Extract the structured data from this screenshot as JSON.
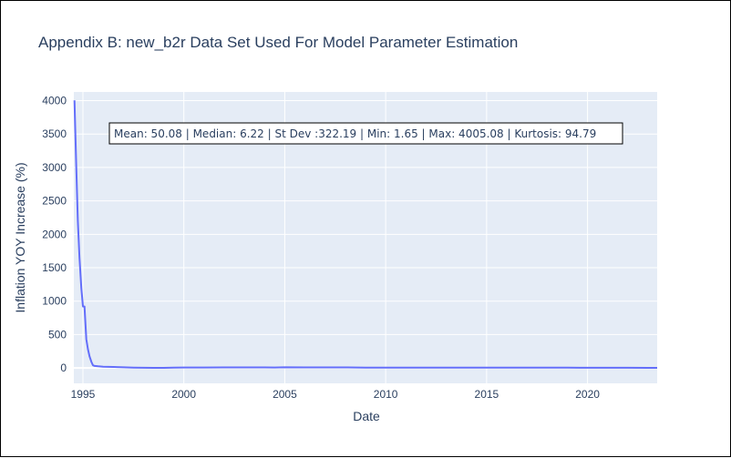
{
  "chart_data": {
    "type": "line",
    "title": "Appendix B: new_b2r Data Set Used For Model Parameter Estimation",
    "xlabel": "Date",
    "ylabel": "Inflation YOY Increase (%)",
    "xlim": [
      1994.55,
      2023.45
    ],
    "ylim": [
      -230,
      4130
    ],
    "x_ticks": [
      1995,
      2000,
      2005,
      2010,
      2015,
      2020
    ],
    "y_ticks": [
      0,
      500,
      1000,
      1500,
      2000,
      2500,
      3000,
      3500,
      4000
    ],
    "grid": true,
    "colors": {
      "line": "#636efa",
      "plot_bg": "#e5ecf6",
      "grid": "#ffffff",
      "text": "#2a3f5f"
    },
    "annotation": "Mean: 50.08 | Median: 6.22 | St Dev :322.19 | Min: 1.65 | Max: 4005.08 | Kurtosis: 94.79",
    "series": [
      {
        "x": [
          1994.58,
          1994.67,
          1994.75,
          1994.83,
          1994.92,
          1995.0,
          1995.08,
          1995.17,
          1995.25,
          1995.33,
          1995.42,
          1995.5,
          1995.58,
          1995.75,
          1996.0,
          1996.5,
          1997.0,
          1997.5,
          1998.0,
          1998.5,
          1999.0,
          1999.5,
          2000.0,
          2000.5,
          2001.0,
          2002.0,
          2003.0,
          2004.0,
          2004.5,
          2005.0,
          2006.0,
          2007.0,
          2008.0,
          2009.0,
          2010.0,
          2011.0,
          2012.0,
          2013.0,
          2014.0,
          2015.0,
          2016.0,
          2017.0,
          2018.0,
          2019.0,
          2020.0,
          2021.0,
          2022.0,
          2023.0,
          2023.45
        ],
        "y": [
          4005,
          3000,
          2200,
          1650,
          1200,
          920,
          920,
          430,
          280,
          170,
          90,
          40,
          30,
          25,
          20,
          15,
          10,
          6,
          3,
          2,
          2,
          5,
          7,
          7.5,
          7.7,
          8,
          9,
          9,
          7,
          10,
          9,
          9,
          9,
          6,
          6,
          6,
          5,
          6,
          6,
          5,
          6,
          4,
          4,
          4,
          3.5,
          3,
          3,
          2.2,
          2
        ]
      }
    ]
  }
}
